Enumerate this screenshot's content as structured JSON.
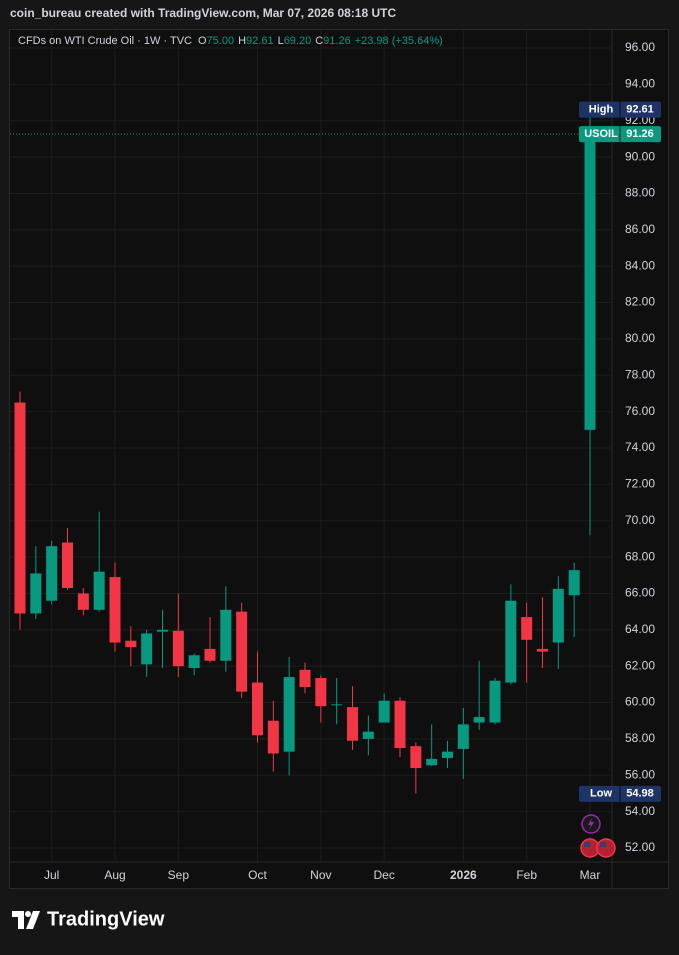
{
  "header": {
    "text": "coin_bureau created with TradingView.com, Mar 07, 2026 08:18 UTC"
  },
  "footer": {
    "brand": "TradingView"
  },
  "chart_data": {
    "type": "candlestick",
    "symbol": "CFDs on WTI Crude Oil · 1W · TVC",
    "ohlc_legend": [
      {
        "key": "O",
        "value": "75.00"
      },
      {
        "key": "H",
        "value": "92.61"
      },
      {
        "key": "L",
        "value": "69.20"
      },
      {
        "key": "C",
        "value": "91.26"
      }
    ],
    "change": "+23.98 (+35.64%)",
    "up_color": "#089981",
    "down_color": "#f23645",
    "categories": [
      null,
      null,
      "Jul",
      null,
      null,
      null,
      "Aug",
      null,
      null,
      null,
      "Sep",
      null,
      null,
      null,
      null,
      "Oct",
      null,
      null,
      null,
      "Nov",
      null,
      null,
      null,
      "Dec",
      null,
      null,
      null,
      null,
      "2026",
      null,
      null,
      null,
      "Feb",
      null,
      null,
      null,
      "Mar"
    ],
    "open": [
      76.5,
      64.9,
      65.6,
      68.8,
      66.0,
      65.1,
      66.9,
      63.4,
      62.1,
      63.9,
      63.95,
      61.9,
      62.95,
      62.3,
      65.0,
      61.1,
      59.0,
      57.3,
      61.8,
      61.35,
      59.85,
      59.75,
      58.0,
      58.9,
      60.1,
      57.6,
      56.55,
      56.95,
      57.45,
      58.9,
      58.9,
      61.1,
      64.7,
      62.95,
      63.3,
      65.9,
      75.0
    ],
    "high": [
      77.1,
      68.6,
      68.9,
      69.6,
      66.3,
      70.5,
      67.7,
      64.2,
      64.0,
      65.1,
      66.0,
      62.7,
      64.7,
      66.4,
      65.5,
      62.8,
      60.1,
      62.5,
      62.2,
      61.5,
      61.35,
      60.9,
      59.3,
      60.5,
      60.3,
      57.8,
      58.8,
      57.9,
      59.7,
      62.3,
      61.35,
      66.5,
      65.5,
      65.8,
      66.95,
      67.7,
      92.61
    ],
    "low": [
      64.0,
      64.6,
      65.4,
      66.2,
      64.8,
      65.0,
      62.8,
      62.0,
      61.4,
      61.9,
      61.4,
      61.5,
      62.2,
      61.7,
      60.25,
      57.8,
      56.2,
      56.0,
      60.5,
      58.9,
      58.8,
      57.4,
      57.1,
      58.9,
      57.0,
      55.0,
      56.5,
      56.4,
      55.8,
      58.5,
      58.8,
      61.0,
      61.1,
      61.9,
      61.85,
      63.6,
      69.2
    ],
    "close": [
      64.9,
      67.1,
      68.6,
      66.3,
      65.1,
      67.2,
      63.3,
      63.05,
      63.8,
      64.0,
      62.0,
      62.6,
      62.3,
      65.1,
      60.6,
      58.2,
      57.2,
      61.4,
      60.85,
      59.8,
      59.9,
      57.9,
      58.4,
      60.1,
      57.5,
      56.4,
      56.9,
      57.3,
      58.8,
      59.2,
      61.2,
      65.6,
      63.45,
      62.8,
      66.25,
      67.28,
      91.26
    ],
    "ylim": [
      51.23,
      96.99
    ],
    "yticks": [
      {
        "value": 52,
        "label": "52.00"
      },
      {
        "value": 54,
        "label": "54.00"
      },
      {
        "value": 56,
        "label": "56.00"
      },
      {
        "value": 58,
        "label": "58.00"
      },
      {
        "value": 60,
        "label": "60.00"
      },
      {
        "value": 62,
        "label": "62.00"
      },
      {
        "value": 64,
        "label": "64.00"
      },
      {
        "value": 66,
        "label": "66.00"
      },
      {
        "value": 68,
        "label": "68.00"
      },
      {
        "value": 70,
        "label": "70.00"
      },
      {
        "value": 72,
        "label": "72.00"
      },
      {
        "value": 74,
        "label": "74.00"
      },
      {
        "value": 76,
        "label": "76.00"
      },
      {
        "value": 78,
        "label": "78.00"
      },
      {
        "value": 80,
        "label": "80.00"
      },
      {
        "value": 82,
        "label": "82.00"
      },
      {
        "value": 84,
        "label": "84.00"
      },
      {
        "value": 86,
        "label": "86.00"
      },
      {
        "value": 88,
        "label": "88.00"
      },
      {
        "value": 90,
        "label": "90.00"
      },
      {
        "value": 92,
        "label": "92.00"
      },
      {
        "value": 94,
        "label": "94.00"
      },
      {
        "value": 96,
        "label": "96.00"
      }
    ],
    "grid": true,
    "price_labels": [
      {
        "name": "High",
        "value": 92.61,
        "color": "#1e3466"
      },
      {
        "name": "USOIL",
        "value": 91.26,
        "color": "#089981"
      },
      {
        "name": "Low",
        "value": 54.98,
        "color": "#1e3466"
      }
    ],
    "last_line": 91.26
  }
}
